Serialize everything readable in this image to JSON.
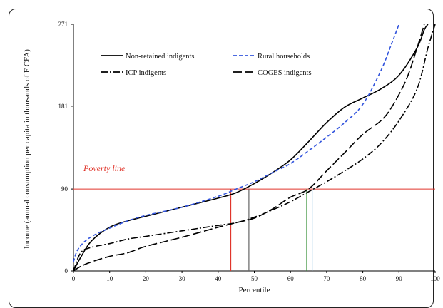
{
  "chart_data": {
    "type": "line",
    "xlabel": "Percentile",
    "ylabel": "Income (annual consumption per capita in thousands of F CFA)",
    "xlim": [
      0,
      100
    ],
    "ylim": [
      0,
      271
    ],
    "x_ticks": [
      "0",
      "10",
      "20",
      "30",
      "40",
      "50",
      "60",
      "70",
      "80",
      "90",
      "100"
    ],
    "y_ticks": [
      "0",
      "90",
      "181",
      "271"
    ],
    "legend_position": "top-left",
    "annotations": {
      "poverty_line_label": "Poverty line",
      "poverty_line_value": 90
    },
    "series": [
      {
        "name": "Non-retained indigents",
        "color": "#000000",
        "style": "solid",
        "x": [
          0,
          2,
          5,
          10,
          15,
          20,
          30,
          40,
          45,
          50,
          55,
          60,
          65,
          70,
          75,
          80,
          85,
          90,
          95,
          97,
          98
        ],
        "y": [
          0,
          15,
          33,
          48,
          55,
          60,
          70,
          80,
          86,
          96,
          108,
          122,
          142,
          163,
          180,
          190,
          200,
          215,
          245,
          265,
          271
        ]
      },
      {
        "name": "Rural households",
        "color": "#3355dd",
        "style": "dashed",
        "x": [
          0,
          1,
          3,
          6,
          10,
          15,
          20,
          30,
          40,
          45,
          50,
          55,
          60,
          65,
          70,
          75,
          80,
          85,
          88,
          90
        ],
        "y": [
          10,
          22,
          32,
          40,
          47,
          55,
          61,
          70,
          82,
          90,
          98,
          108,
          118,
          132,
          147,
          163,
          183,
          220,
          250,
          271
        ]
      },
      {
        "name": "ICP indigents",
        "color": "#000000",
        "style": "dashdot",
        "x": [
          0,
          2,
          5,
          10,
          15,
          20,
          30,
          40,
          45,
          50,
          55,
          60,
          65,
          70,
          75,
          80,
          85,
          90,
          95,
          98,
          100
        ],
        "y": [
          0,
          20,
          26,
          30,
          35,
          38,
          44,
          50,
          53,
          59,
          67,
          76,
          87,
          98,
          110,
          123,
          140,
          165,
          200,
          245,
          271
        ]
      },
      {
        "name": "COGES indigents",
        "color": "#000000",
        "style": "longdash",
        "x": [
          0,
          2,
          5,
          10,
          15,
          20,
          30,
          40,
          45,
          50,
          55,
          60,
          65,
          70,
          75,
          80,
          85,
          88,
          92,
          95,
          97
        ],
        "y": [
          0,
          5,
          10,
          16,
          20,
          27,
          37,
          48,
          53,
          58,
          68,
          81,
          90,
          110,
          130,
          150,
          165,
          180,
          210,
          245,
          271
        ]
      }
    ],
    "vertical_markers": [
      {
        "x": 43.5,
        "color": "#e0352b"
      },
      {
        "x": 48.5,
        "color": "#666666"
      },
      {
        "x": 64.5,
        "color": "#2a8a2a"
      },
      {
        "x": 66,
        "color": "#8fbfe0"
      }
    ]
  }
}
